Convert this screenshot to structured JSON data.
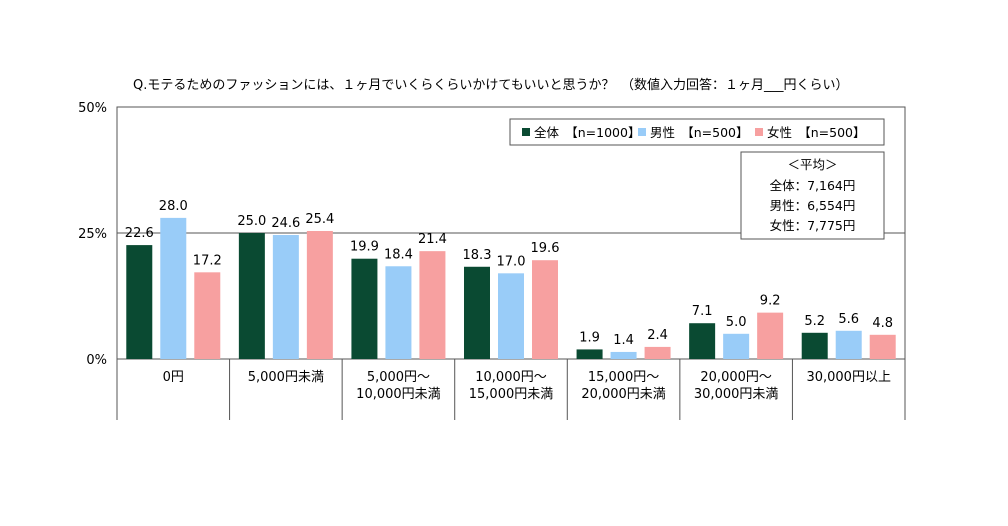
{
  "chart_data": {
    "type": "bar",
    "title": "Q.モテるためのファッションには、１ヶ月でいくらくらいかけてもいいと思うか？　（数値入力回答：１ヶ月___円くらい）",
    "categories": [
      "0円",
      "5,000円未満",
      "5,000円～\n10,000円未満",
      "10,000円～\n15,000円未満",
      "15,000円～\n20,000円未満",
      "20,000円～\n30,000円未満",
      "30,000円以上"
    ],
    "series": [
      {
        "name": "全体　【n=1000】",
        "color": "#0a4a32",
        "values": [
          22.6,
          25.0,
          19.9,
          18.3,
          1.9,
          7.1,
          5.2
        ]
      },
      {
        "name": "男性　【n=500】",
        "color": "#99ccf8",
        "values": [
          28.0,
          24.6,
          18.4,
          17.0,
          1.4,
          5.0,
          5.6
        ]
      },
      {
        "name": "女性　【n=500】",
        "color": "#f7a0a0",
        "values": [
          17.2,
          25.4,
          21.4,
          19.6,
          2.4,
          9.2,
          4.8
        ]
      }
    ],
    "yticks": [
      "0%",
      "25%",
      "50%"
    ],
    "ylim": [
      0,
      50
    ],
    "grid": true,
    "legend": "top-right",
    "average_box": {
      "heading": "＜平均＞",
      "lines": [
        "全体：7,164円",
        "男性：6,554円",
        "女性：7,775円"
      ]
    }
  }
}
